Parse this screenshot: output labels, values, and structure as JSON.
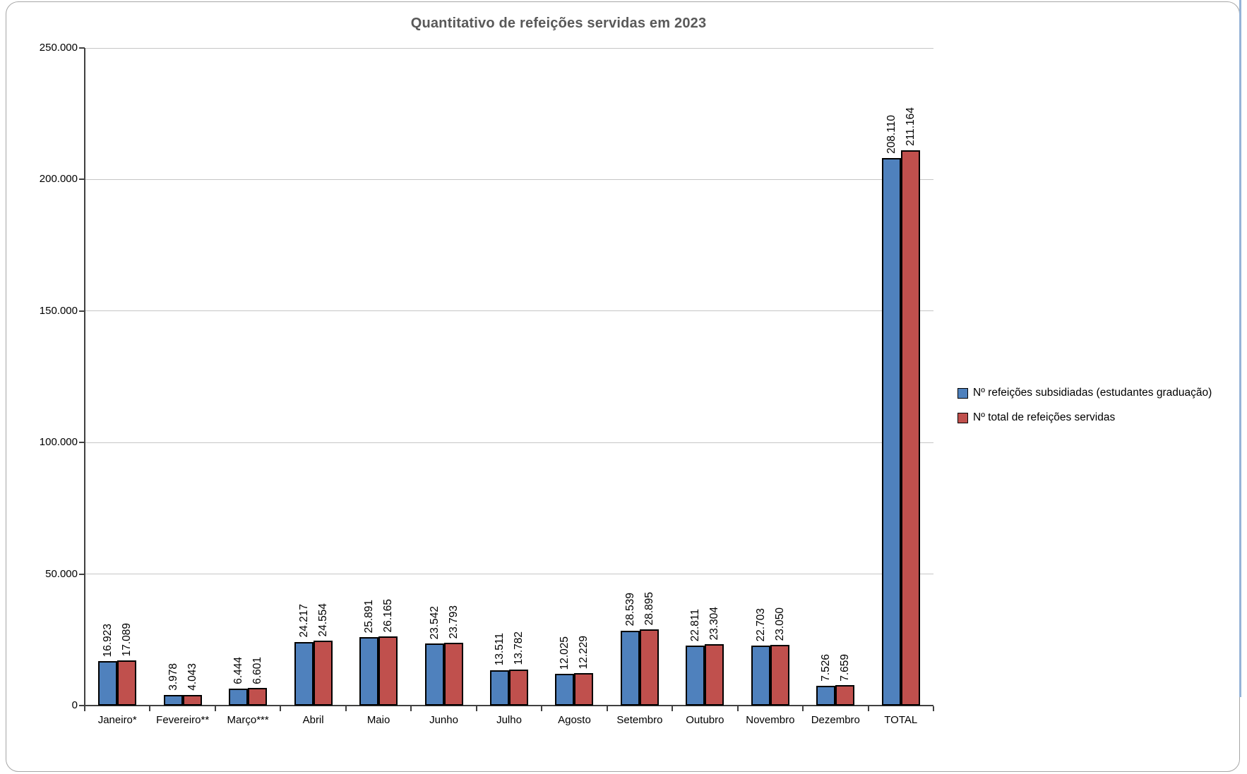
{
  "frame": {
    "border_color": "#a6a6a6",
    "right_edge_color": "#95b3d7",
    "background": "#ffffff"
  },
  "chart_data": {
    "type": "bar",
    "title": "Quantitativo de refeições servidas em 2023",
    "xlabel": "",
    "ylabel": "",
    "grid": true,
    "legend_position": "right",
    "ylim": [
      0,
      250000
    ],
    "ytick_interval": 50000,
    "yticks": [
      {
        "value": 0,
        "label": "0"
      },
      {
        "value": 50000,
        "label": "50.000"
      },
      {
        "value": 100000,
        "label": "100.000"
      },
      {
        "value": 150000,
        "label": "150.000"
      },
      {
        "value": 200000,
        "label": "200.000"
      },
      {
        "value": 250000,
        "label": "250.000"
      }
    ],
    "categories": [
      "Janeiro*",
      "Fevereiro**",
      "Março***",
      "Abril",
      "Maio",
      "Junho",
      "Julho",
      "Agosto",
      "Setembro",
      "Outubro",
      "Novembro",
      "Dezembro",
      "TOTAL"
    ],
    "series": [
      {
        "name": "Nº refeições subsidiadas (estudantes graduação)",
        "color": "#4f81bd",
        "values": [
          16923,
          3978,
          6444,
          24217,
          25891,
          23542,
          13511,
          12025,
          28539,
          22811,
          22703,
          7526,
          208110
        ],
        "labels": [
          "16.923",
          "3.978",
          "6.444",
          "24.217",
          "25.891",
          "23.542",
          "13.511",
          "12.025",
          "28.539",
          "22.811",
          "22.703",
          "7.526",
          "208.110"
        ]
      },
      {
        "name": "Nº total de refeições servidas",
        "color": "#c0504d",
        "values": [
          17089,
          4043,
          6601,
          24554,
          26165,
          23793,
          13782,
          12229,
          28895,
          23304,
          23050,
          7659,
          211164
        ],
        "labels": [
          "17.089",
          "4.043",
          "6.601",
          "24.554",
          "26.165",
          "23.793",
          "13.782",
          "12.229",
          "28.895",
          "23.304",
          "23.050",
          "7.659",
          "211.164"
        ]
      }
    ]
  }
}
